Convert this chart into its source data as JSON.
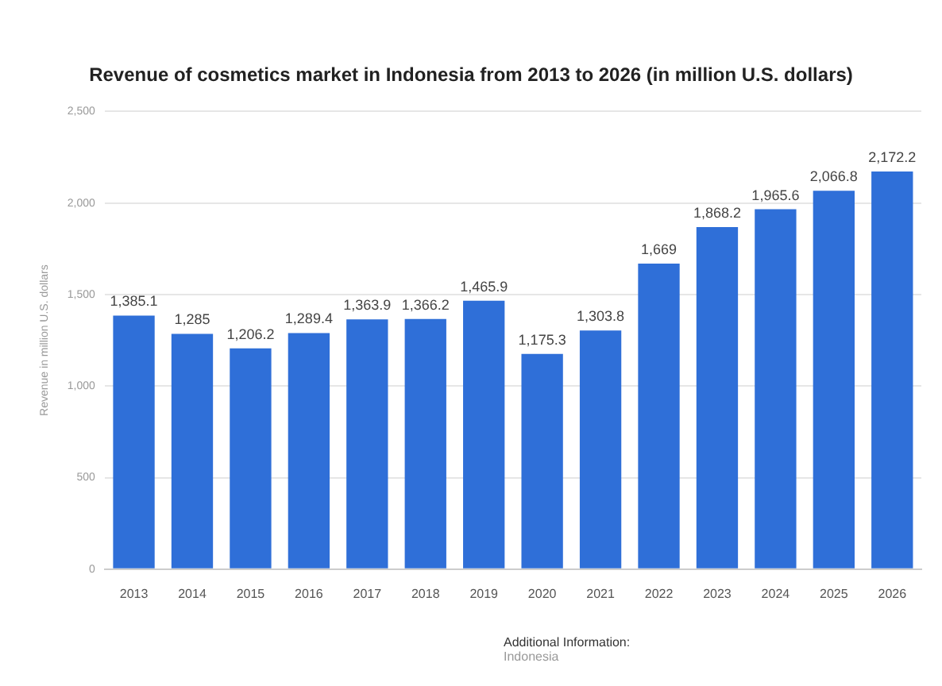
{
  "chart_data": {
    "type": "bar",
    "title": "Revenue of cosmetics market in Indonesia from 2013 to 2026 (in million U.S. dollars)",
    "ylabel": "Revenue in million U.S. dollars",
    "categories": [
      "2013",
      "2014",
      "2015",
      "2016",
      "2017",
      "2018",
      "2019",
      "2020",
      "2021",
      "2022",
      "2023",
      "2024",
      "2025",
      "2026"
    ],
    "values": [
      1385.1,
      1285,
      1206.2,
      1289.4,
      1363.9,
      1366.2,
      1465.9,
      1175.3,
      1303.8,
      1669,
      1868.2,
      1965.6,
      2066.8,
      2172.2
    ],
    "value_labels": [
      "1,385.1",
      "1,285",
      "1,206.2",
      "1,289.4",
      "1,363.9",
      "1,366.2",
      "1,465.9",
      "1,175.3",
      "1,303.8",
      "1,669",
      "1,868.2",
      "1,965.6",
      "2,066.8",
      "2,172.2"
    ],
    "color": "#2f6fd8",
    "ylim": [
      0,
      2500
    ],
    "yticks": [
      0,
      500,
      {
        "value": 1000,
        "label": "1,000"
      },
      {
        "value": 1500,
        "label": "1,500"
      },
      {
        "value": 2000,
        "label": "2,000"
      },
      {
        "value": 2500,
        "label": "2,500"
      }
    ],
    "grid": "y",
    "legend": false,
    "annotations": [
      "Additional Information:",
      "Indonesia"
    ]
  }
}
